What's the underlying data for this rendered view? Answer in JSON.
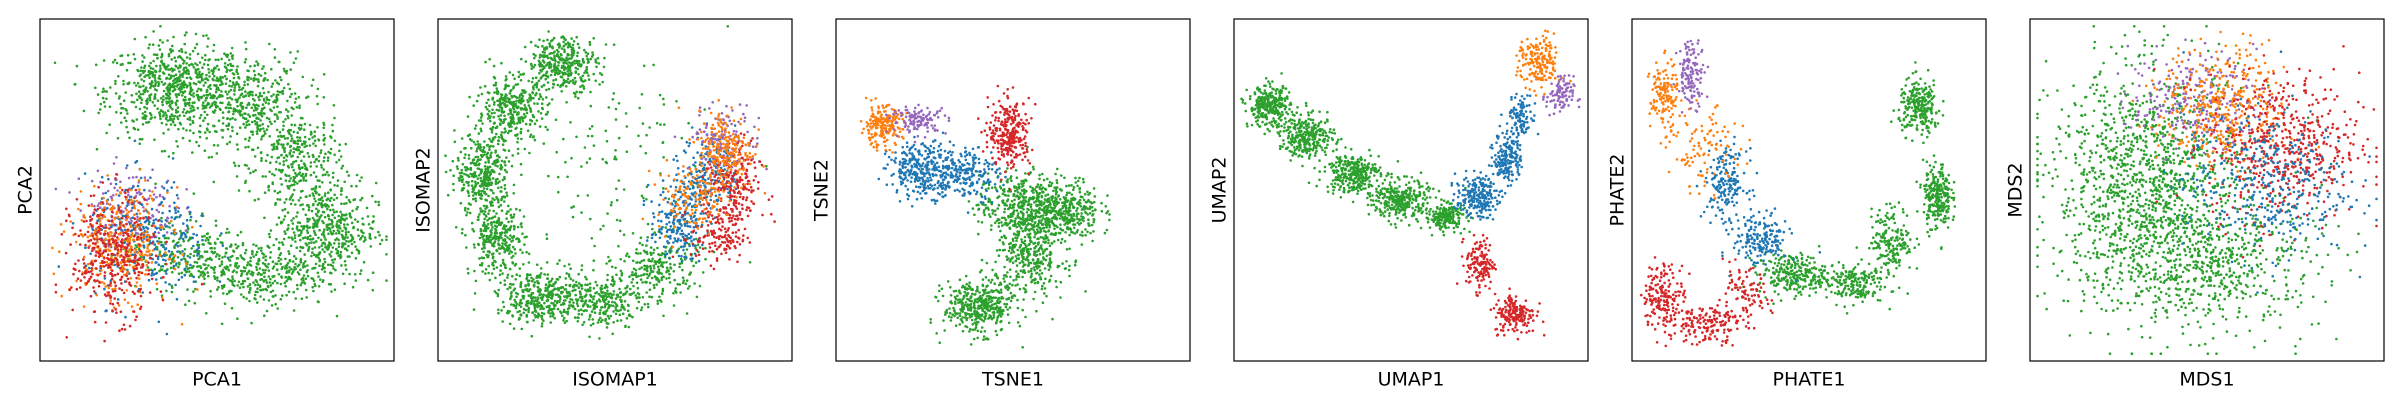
{
  "colors": {
    "blue": "#1f77b4",
    "orange": "#ff7f0e",
    "green": "#2ca02c",
    "red": "#d62728",
    "purple": "#9467bd"
  },
  "chart_data": [
    {
      "type": "scatter",
      "method": "PCA",
      "xlabel": "PCA1",
      "ylabel": "PCA2",
      "xticks": [],
      "yticks": [],
      "grid": false,
      "legend": "none",
      "xlim": [
        0,
        100
      ],
      "ylim": [
        0,
        100
      ],
      "series": [
        {
          "color": "green",
          "clusters": [
            {
              "cx": 38,
              "cy": 80,
              "sx": 10,
              "sy": 7,
              "n": 700
            },
            {
              "cx": 60,
              "cy": 75,
              "sx": 8,
              "sy": 8,
              "n": 400
            },
            {
              "cx": 74,
              "cy": 57,
              "sx": 6,
              "sy": 8,
              "n": 300
            },
            {
              "cx": 82,
              "cy": 38,
              "sx": 7,
              "sy": 7,
              "n": 450
            },
            {
              "cx": 62,
              "cy": 25,
              "sx": 10,
              "sy": 5,
              "n": 350
            },
            {
              "cx": 40,
              "cy": 31,
              "sx": 9,
              "sy": 5,
              "n": 250
            }
          ]
        },
        {
          "color": "purple",
          "clusters": [
            {
              "cx": 24,
              "cy": 45,
              "sx": 7,
              "sy": 6,
              "n": 160
            }
          ]
        },
        {
          "color": "blue",
          "clusters": [
            {
              "cx": 30,
              "cy": 35,
              "sx": 9,
              "sy": 9,
              "n": 300
            }
          ]
        },
        {
          "color": "orange",
          "clusters": [
            {
              "cx": 22,
              "cy": 34,
              "sx": 7,
              "sy": 8,
              "n": 360
            }
          ]
        },
        {
          "color": "red",
          "clusters": [
            {
              "cx": 20,
              "cy": 30,
              "sx": 6,
              "sy": 9,
              "n": 380
            }
          ]
        }
      ]
    },
    {
      "type": "scatter",
      "method": "ISOMAP",
      "xlabel": "ISOMAP1",
      "ylabel": "ISOMAP2",
      "xticks": [],
      "yticks": [],
      "grid": false,
      "legend": "none",
      "xlim": [
        0,
        100
      ],
      "ylim": [
        0,
        100
      ],
      "series": [
        {
          "color": "green",
          "clusters": [
            {
              "cx": 35,
              "cy": 88,
              "sx": 5,
              "sy": 4,
              "n": 350
            },
            {
              "cx": 20,
              "cy": 74,
              "sx": 5,
              "sy": 5,
              "n": 350
            },
            {
              "cx": 12,
              "cy": 55,
              "sx": 4,
              "sy": 6,
              "n": 350
            },
            {
              "cx": 16,
              "cy": 35,
              "sx": 4,
              "sy": 5,
              "n": 300
            },
            {
              "cx": 28,
              "cy": 18,
              "sx": 6,
              "sy": 4,
              "n": 350
            },
            {
              "cx": 45,
              "cy": 17,
              "sx": 7,
              "sy": 4,
              "n": 300
            },
            {
              "cx": 62,
              "cy": 27,
              "sx": 6,
              "sy": 5,
              "n": 250
            },
            {
              "cx": 52,
              "cy": 60,
              "sx": 16,
              "sy": 14,
              "n": 120
            }
          ]
        },
        {
          "color": "blue",
          "clusters": [
            {
              "cx": 68,
              "cy": 40,
              "sx": 4,
              "sy": 5,
              "n": 200
            },
            {
              "cx": 77,
              "cy": 55,
              "sx": 4,
              "sy": 6,
              "n": 200
            }
          ]
        },
        {
          "color": "purple",
          "clusters": [
            {
              "cx": 82,
              "cy": 65,
              "sx": 5,
              "sy": 5,
              "n": 130
            }
          ]
        },
        {
          "color": "red",
          "clusters": [
            {
              "cx": 84,
              "cy": 50,
              "sx": 4,
              "sy": 7,
              "n": 230
            },
            {
              "cx": 80,
              "cy": 36,
              "sx": 4,
              "sy": 4,
              "n": 120
            }
          ]
        },
        {
          "color": "orange",
          "clusters": [
            {
              "cx": 82,
              "cy": 62,
              "sx": 4,
              "sy": 6,
              "n": 230
            },
            {
              "cx": 72,
              "cy": 48,
              "sx": 5,
              "sy": 5,
              "n": 130
            }
          ]
        }
      ]
    },
    {
      "type": "scatter",
      "method": "TSNE",
      "xlabel": "TSNE1",
      "ylabel": "TSNE2",
      "xticks": [],
      "yticks": [],
      "grid": false,
      "legend": "none",
      "xlim": [
        0,
        100
      ],
      "ylim": [
        0,
        100
      ],
      "series": [
        {
          "color": "green",
          "clusters": [
            {
              "cx": 52,
              "cy": 45,
              "sx": 6,
              "sy": 5,
              "n": 400
            },
            {
              "cx": 65,
              "cy": 44,
              "sx": 5,
              "sy": 5,
              "n": 350
            },
            {
              "cx": 55,
              "cy": 30,
              "sx": 5,
              "sy": 6,
              "n": 350
            },
            {
              "cx": 40,
              "cy": 15,
              "sx": 5,
              "sy": 4,
              "n": 400
            }
          ]
        },
        {
          "color": "blue",
          "clusters": [
            {
              "cx": 24,
              "cy": 56,
              "sx": 5,
              "sy": 4,
              "n": 300
            },
            {
              "cx": 36,
              "cy": 55,
              "sx": 5,
              "sy": 4,
              "n": 200
            }
          ]
        },
        {
          "color": "orange",
          "clusters": [
            {
              "cx": 12,
              "cy": 69,
              "sx": 3,
              "sy": 3,
              "n": 200
            }
          ]
        },
        {
          "color": "purple",
          "clusters": [
            {
              "cx": 23,
              "cy": 71,
              "sx": 4,
              "sy": 2,
              "n": 120
            }
          ]
        },
        {
          "color": "red",
          "clusters": [
            {
              "cx": 49,
              "cy": 67,
              "sx": 3,
              "sy": 5,
              "n": 280
            }
          ]
        }
      ]
    },
    {
      "type": "scatter",
      "method": "UMAP",
      "xlabel": "UMAP1",
      "ylabel": "UMAP2",
      "xticks": [],
      "yticks": [],
      "grid": false,
      "legend": "none",
      "xlim": [
        0,
        100
      ],
      "ylim": [
        0,
        100
      ],
      "series": [
        {
          "color": "green",
          "clusters": [
            {
              "cx": 9,
              "cy": 75,
              "sx": 3,
              "sy": 3,
              "n": 300
            },
            {
              "cx": 20,
              "cy": 66,
              "sx": 4,
              "sy": 3,
              "n": 300
            },
            {
              "cx": 33,
              "cy": 55,
              "sx": 4,
              "sy": 3,
              "n": 300
            },
            {
              "cx": 47,
              "cy": 47,
              "sx": 4,
              "sy": 3,
              "n": 300
            },
            {
              "cx": 60,
              "cy": 42,
              "sx": 3,
              "sy": 2,
              "n": 200
            }
          ]
        },
        {
          "color": "blue",
          "clusters": [
            {
              "cx": 69,
              "cy": 48,
              "sx": 3,
              "sy": 3,
              "n": 220
            },
            {
              "cx": 78,
              "cy": 60,
              "sx": 2,
              "sy": 4,
              "n": 180
            },
            {
              "cx": 82,
              "cy": 72,
              "sx": 2,
              "sy": 3,
              "n": 100
            }
          ]
        },
        {
          "color": "orange",
          "clusters": [
            {
              "cx": 87,
              "cy": 88,
              "sx": 3,
              "sy": 4,
              "n": 180
            }
          ]
        },
        {
          "color": "purple",
          "clusters": [
            {
              "cx": 93,
              "cy": 78,
              "sx": 2,
              "sy": 3,
              "n": 90
            }
          ]
        },
        {
          "color": "red",
          "clusters": [
            {
              "cx": 70,
              "cy": 28,
              "sx": 2,
              "sy": 4,
              "n": 140
            },
            {
              "cx": 80,
              "cy": 13,
              "sx": 3,
              "sy": 3,
              "n": 180
            }
          ]
        }
      ]
    },
    {
      "type": "scatter",
      "method": "PHATE",
      "xlabel": "PHATE1",
      "ylabel": "PHATE2",
      "xticks": [],
      "yticks": [],
      "grid": false,
      "legend": "none",
      "xlim": [
        0,
        100
      ],
      "ylim": [
        0,
        100
      ],
      "series": [
        {
          "color": "green",
          "clusters": [
            {
              "cx": 45,
              "cy": 25,
              "sx": 5,
              "sy": 3,
              "n": 250
            },
            {
              "cx": 62,
              "cy": 22,
              "sx": 5,
              "sy": 3,
              "n": 200
            },
            {
              "cx": 74,
              "cy": 35,
              "sx": 3,
              "sy": 5,
              "n": 180
            },
            {
              "cx": 87,
              "cy": 48,
              "sx": 2,
              "sy": 5,
              "n": 250
            },
            {
              "cx": 82,
              "cy": 75,
              "sx": 3,
              "sy": 4,
              "n": 250
            }
          ]
        },
        {
          "color": "blue",
          "clusters": [
            {
              "cx": 26,
              "cy": 52,
              "sx": 3,
              "sy": 5,
              "n": 180
            },
            {
              "cx": 36,
              "cy": 35,
              "sx": 4,
              "sy": 4,
              "n": 180
            }
          ]
        },
        {
          "color": "orange",
          "clusters": [
            {
              "cx": 8,
              "cy": 78,
              "sx": 2,
              "sy": 5,
              "n": 140
            },
            {
              "cx": 20,
              "cy": 62,
              "sx": 5,
              "sy": 6,
              "n": 100
            }
          ]
        },
        {
          "color": "purple",
          "clusters": [
            {
              "cx": 16,
              "cy": 85,
              "sx": 2,
              "sy": 5,
              "n": 130
            }
          ]
        },
        {
          "color": "red",
          "clusters": [
            {
              "cx": 8,
              "cy": 18,
              "sx": 3,
              "sy": 5,
              "n": 180
            },
            {
              "cx": 20,
              "cy": 10,
              "sx": 5,
              "sy": 3,
              "n": 150
            },
            {
              "cx": 31,
              "cy": 18,
              "sx": 4,
              "sy": 4,
              "n": 100
            }
          ]
        }
      ]
    },
    {
      "type": "scatter",
      "method": "MDS",
      "xlabel": "MDS1",
      "ylabel": "MDS2",
      "xticks": [],
      "yticks": [],
      "grid": false,
      "legend": "none",
      "xlim": [
        0,
        100
      ],
      "ylim": [
        0,
        100
      ],
      "series": [
        {
          "color": "green",
          "clusters": [
            {
              "cx": 33,
              "cy": 50,
              "sx": 14,
              "sy": 18,
              "n": 1400
            },
            {
              "cx": 55,
              "cy": 28,
              "sx": 14,
              "sy": 10,
              "n": 500
            }
          ]
        },
        {
          "color": "purple",
          "clusters": [
            {
              "cx": 46,
              "cy": 77,
              "sx": 9,
              "sy": 7,
              "n": 250
            }
          ]
        },
        {
          "color": "orange",
          "clusters": [
            {
              "cx": 55,
              "cy": 75,
              "sx": 9,
              "sy": 9,
              "n": 380
            }
          ]
        },
        {
          "color": "red",
          "clusters": [
            {
              "cx": 72,
              "cy": 63,
              "sx": 11,
              "sy": 11,
              "n": 550
            }
          ]
        },
        {
          "color": "blue",
          "clusters": [
            {
              "cx": 67,
              "cy": 52,
              "sx": 12,
              "sy": 11,
              "n": 380
            }
          ]
        }
      ]
    }
  ]
}
